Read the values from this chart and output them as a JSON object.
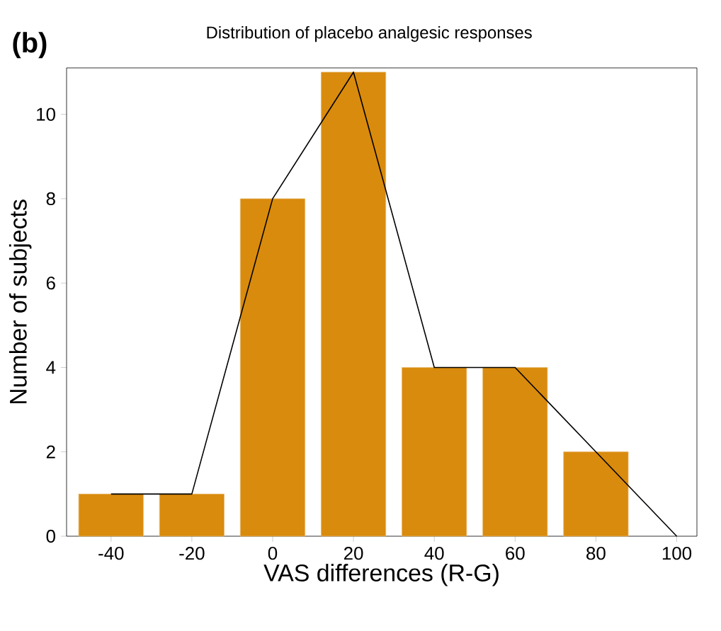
{
  "chart_data": {
    "type": "bar",
    "title": "Distribution of placebo analgesic responses",
    "xlabel": "VAS differences (R-G)",
    "ylabel": "Number of subjects",
    "annotations": [
      "(b)"
    ],
    "x": [
      -40,
      -20,
      0,
      20,
      40,
      60,
      80
    ],
    "series": [
      {
        "color": "#d98b0d",
        "values": [
          1,
          1,
          8,
          11,
          4,
          4,
          2
        ]
      },
      {
        "type": "line",
        "color": "#000000",
        "x": [
          -40,
          -20,
          0,
          20,
          40,
          60,
          80,
          100
        ],
        "values": [
          1,
          1,
          8,
          11,
          4,
          4,
          2,
          0
        ]
      }
    ],
    "xlim": [
      -51,
      105
    ],
    "ylim": [
      0,
      11.1
    ],
    "xticks": [
      -40,
      -20,
      0,
      20,
      40,
      60,
      80,
      100
    ],
    "yticks": [
      0,
      2,
      4,
      6,
      8,
      10
    ]
  }
}
